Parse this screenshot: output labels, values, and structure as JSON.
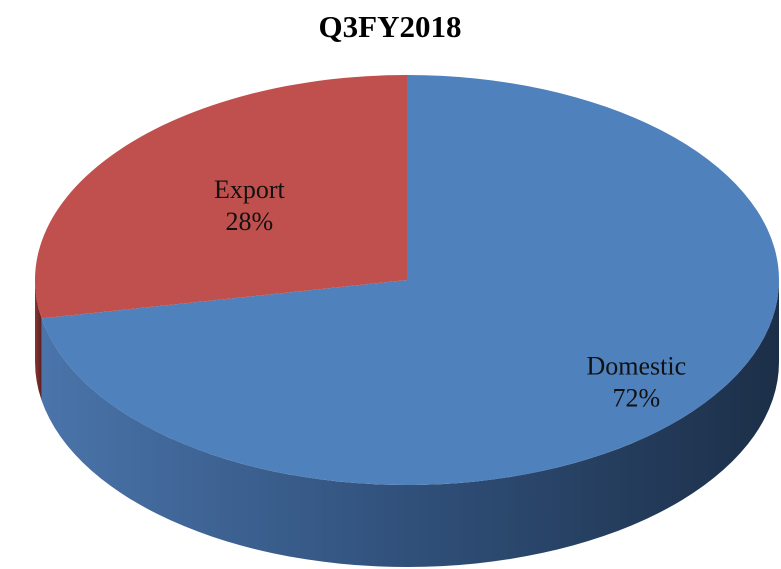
{
  "chart_data": {
    "type": "pie",
    "title": "Q3FY2018",
    "categories": [
      "Domestic",
      "Export"
    ],
    "values": [
      72,
      28
    ],
    "value_labels": [
      "72%",
      "28%"
    ],
    "colors": [
      "#4f81bd",
      "#c0504d"
    ]
  }
}
